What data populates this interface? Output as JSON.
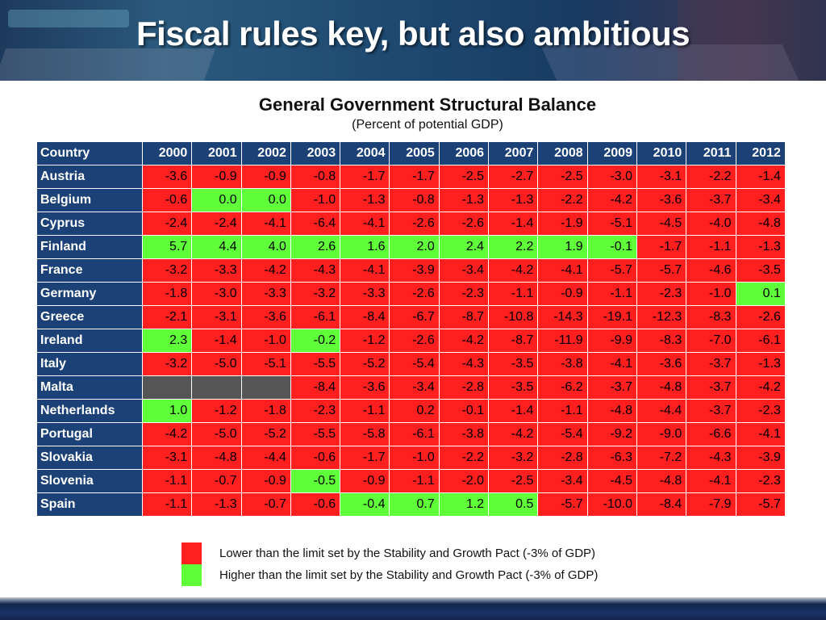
{
  "banner": {
    "title": "Fiscal rules key, but also ambitious"
  },
  "chart_title": "General Government Structural Balance",
  "chart_subtitle": "(Percent of potential GDP)",
  "colors": {
    "header_bg": "#1c4177",
    "below_limit": "#ff1f1f",
    "above_limit": "#5fff3a",
    "no_data": "#555555"
  },
  "chart_data": {
    "type": "table",
    "title": "General Government Structural Balance",
    "subtitle": "(Percent of potential GDP)",
    "columns": [
      "Country",
      "2000",
      "2001",
      "2002",
      "2003",
      "2004",
      "2005",
      "2006",
      "2007",
      "2008",
      "2009",
      "2010",
      "2011",
      "2012"
    ],
    "rows": [
      {
        "country": "Austria",
        "values": [
          "-3.6",
          "-0.9",
          "-0.9",
          "-0.8",
          "-1.7",
          "-1.7",
          "-2.5",
          "-2.7",
          "-2.5",
          "-3.0",
          "-3.1",
          "-2.2",
          "-1.4"
        ],
        "status": [
          "r",
          "r",
          "r",
          "r",
          "r",
          "r",
          "r",
          "r",
          "r",
          "r",
          "r",
          "r",
          "r"
        ]
      },
      {
        "country": "Belgium",
        "values": [
          "-0.6",
          "0.0",
          "0.0",
          "-1.0",
          "-1.3",
          "-0.8",
          "-1.3",
          "-1.3",
          "-2.2",
          "-4.2",
          "-3.6",
          "-3.7",
          "-3.4"
        ],
        "status": [
          "r",
          "g",
          "g",
          "r",
          "r",
          "r",
          "r",
          "r",
          "r",
          "r",
          "r",
          "r",
          "r"
        ]
      },
      {
        "country": "Cyprus",
        "values": [
          "-2.4",
          "-2.4",
          "-4.1",
          "-6.4",
          "-4.1",
          "-2.6",
          "-2.6",
          "-1.4",
          "-1.9",
          "-5.1",
          "-4.5",
          "-4.0",
          "-4.8"
        ],
        "status": [
          "r",
          "r",
          "r",
          "r",
          "r",
          "r",
          "r",
          "r",
          "r",
          "r",
          "r",
          "r",
          "r"
        ]
      },
      {
        "country": "Finland",
        "values": [
          "5.7",
          "4.4",
          "4.0",
          "2.6",
          "1.6",
          "2.0",
          "2.4",
          "2.2",
          "1.9",
          "-0.1",
          "-1.7",
          "-1.1",
          "-1.3"
        ],
        "status": [
          "g",
          "g",
          "g",
          "g",
          "g",
          "g",
          "g",
          "g",
          "g",
          "g",
          "r",
          "r",
          "r"
        ]
      },
      {
        "country": "France",
        "values": [
          "-3.2",
          "-3.3",
          "-4.2",
          "-4.3",
          "-4.1",
          "-3.9",
          "-3.4",
          "-4.2",
          "-4.1",
          "-5.7",
          "-5.7",
          "-4.6",
          "-3.5"
        ],
        "status": [
          "r",
          "r",
          "r",
          "r",
          "r",
          "r",
          "r",
          "r",
          "r",
          "r",
          "r",
          "r",
          "r"
        ]
      },
      {
        "country": "Germany",
        "values": [
          "-1.8",
          "-3.0",
          "-3.3",
          "-3.2",
          "-3.3",
          "-2.6",
          "-2.3",
          "-1.1",
          "-0.9",
          "-1.1",
          "-2.3",
          "-1.0",
          "0.1"
        ],
        "status": [
          "r",
          "r",
          "r",
          "r",
          "r",
          "r",
          "r",
          "r",
          "r",
          "r",
          "r",
          "r",
          "g"
        ]
      },
      {
        "country": "Greece",
        "values": [
          "-2.1",
          "-3.1",
          "-3.6",
          "-6.1",
          "-8.4",
          "-6.7",
          "-8.7",
          "-10.8",
          "-14.3",
          "-19.1",
          "-12.3",
          "-8.3",
          "-2.6"
        ],
        "status": [
          "r",
          "r",
          "r",
          "r",
          "r",
          "r",
          "r",
          "r",
          "r",
          "r",
          "r",
          "r",
          "r"
        ]
      },
      {
        "country": "Ireland",
        "values": [
          "2.3",
          "-1.4",
          "-1.0",
          "-0.2",
          "-1.2",
          "-2.6",
          "-4.2",
          "-8.7",
          "-11.9",
          "-9.9",
          "-8.3",
          "-7.0",
          "-6.1"
        ],
        "status": [
          "g",
          "r",
          "r",
          "g",
          "r",
          "r",
          "r",
          "r",
          "r",
          "r",
          "r",
          "r",
          "r"
        ]
      },
      {
        "country": "Italy",
        "values": [
          "-3.2",
          "-5.0",
          "-5.1",
          "-5.5",
          "-5.2",
          "-5.4",
          "-4.3",
          "-3.5",
          "-3.8",
          "-4.1",
          "-3.6",
          "-3.7",
          "-1.3"
        ],
        "status": [
          "r",
          "r",
          "r",
          "r",
          "r",
          "r",
          "r",
          "r",
          "r",
          "r",
          "r",
          "r",
          "r"
        ]
      },
      {
        "country": "Malta",
        "values": [
          "",
          "",
          "",
          "-8.4",
          "-3.6",
          "-3.4",
          "-2.8",
          "-3.5",
          "-6.2",
          "-3.7",
          "-4.8",
          "-3.7",
          "-4.2"
        ],
        "status": [
          "n",
          "n",
          "n",
          "r",
          "r",
          "r",
          "r",
          "r",
          "r",
          "r",
          "r",
          "r",
          "r"
        ]
      },
      {
        "country": "Netherlands",
        "values": [
          "1.0",
          "-1.2",
          "-1.8",
          "-2.3",
          "-1.1",
          "0.2",
          "-0.1",
          "-1.4",
          "-1.1",
          "-4.8",
          "-4.4",
          "-3.7",
          "-2.3"
        ],
        "status": [
          "g",
          "r",
          "r",
          "r",
          "r",
          "r",
          "r",
          "r",
          "r",
          "r",
          "r",
          "r",
          "r"
        ]
      },
      {
        "country": "Portugal",
        "values": [
          "-4.2",
          "-5.0",
          "-5.2",
          "-5.5",
          "-5.8",
          "-6.1",
          "-3.8",
          "-4.2",
          "-5.4",
          "-9.2",
          "-9.0",
          "-6.6",
          "-4.1"
        ],
        "status": [
          "r",
          "r",
          "r",
          "r",
          "r",
          "r",
          "r",
          "r",
          "r",
          "r",
          "r",
          "r",
          "r"
        ]
      },
      {
        "country": "Slovakia",
        "values": [
          "-3.1",
          "-4.8",
          "-4.4",
          "-0.6",
          "-1.7",
          "-1.0",
          "-2.2",
          "-3.2",
          "-2.8",
          "-6.3",
          "-7.2",
          "-4.3",
          "-3.9"
        ],
        "status": [
          "r",
          "r",
          "r",
          "r",
          "r",
          "r",
          "r",
          "r",
          "r",
          "r",
          "r",
          "r",
          "r"
        ]
      },
      {
        "country": "Slovenia",
        "values": [
          "-1.1",
          "-0.7",
          "-0.9",
          "-0.5",
          "-0.9",
          "-1.1",
          "-2.0",
          "-2.5",
          "-3.4",
          "-4.5",
          "-4.8",
          "-4.1",
          "-2.3"
        ],
        "status": [
          "r",
          "r",
          "r",
          "g",
          "r",
          "r",
          "r",
          "r",
          "r",
          "r",
          "r",
          "r",
          "r"
        ]
      },
      {
        "country": "Spain",
        "values": [
          "-1.1",
          "-1.3",
          "-0.7",
          "-0.6",
          "-0.4",
          "0.7",
          "1.2",
          "0.5",
          "-5.7",
          "-10.0",
          "-8.4",
          "-7.9",
          "-5.7"
        ],
        "status": [
          "r",
          "r",
          "r",
          "r",
          "g",
          "g",
          "g",
          "g",
          "r",
          "r",
          "r",
          "r",
          "r"
        ]
      }
    ],
    "legend": [
      {
        "key": "r",
        "label": "Lower than the limit set by the Stability and Growth Pact (-3% of GDP)",
        "color": "#ff1f1f"
      },
      {
        "key": "g",
        "label": "Higher than the limit set by the Stability and Growth Pact (-3% of GDP)",
        "color": "#5fff3a"
      }
    ]
  }
}
